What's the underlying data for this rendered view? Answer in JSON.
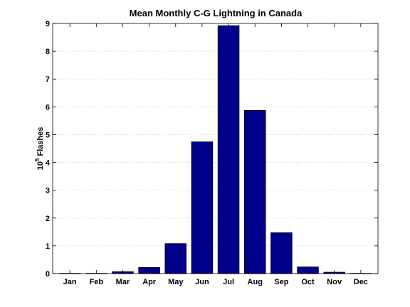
{
  "chart_data": {
    "type": "bar",
    "title": "Mean Monthly C-G Lightning in Canada",
    "xlabel": "",
    "ylabel": {
      "base": "10",
      "exponent": "5",
      "text": "Flashes"
    },
    "categories": [
      "Jan",
      "Feb",
      "Mar",
      "Apr",
      "May",
      "Jun",
      "Jul",
      "Aug",
      "Sep",
      "Oct",
      "Nov",
      "Dec"
    ],
    "values": [
      0.01,
      0.01,
      0.07,
      0.22,
      1.08,
      4.74,
      8.92,
      5.87,
      1.47,
      0.24,
      0.05,
      0.01
    ],
    "ylim": [
      0,
      9
    ],
    "yticks": [
      "0",
      "1",
      "2",
      "3",
      "4",
      "5",
      "6",
      "7",
      "8",
      "9"
    ],
    "grid": "horizontal dotted",
    "colors": {
      "bar": "#00008b",
      "grid": "#bbbbbb",
      "axis": "#000000"
    }
  }
}
